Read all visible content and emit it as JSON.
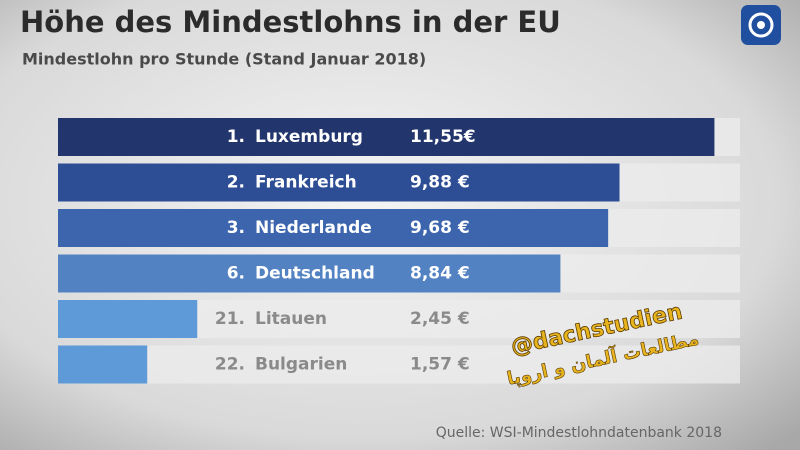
{
  "chart_data": {
    "type": "bar",
    "orientation": "horizontal",
    "title": "Höhe des Mindestlohns in der EU",
    "subtitle": "Mindestlohn pro Stunde (Stand Januar 2018)",
    "ranks": [
      "1.",
      "2.",
      "3.",
      "6.",
      "21.",
      "22."
    ],
    "categories": [
      "Luxemburg",
      "Frankreich",
      "Niederlande",
      "Deutschland",
      "Litauen",
      "Bulgarien"
    ],
    "values": [
      11.55,
      9.88,
      9.68,
      8.84,
      2.45,
      1.57
    ],
    "value_labels": [
      "11,55€",
      "9,88 €",
      "9,68 €",
      "8,84 €",
      "2,45 €",
      "1,57 €"
    ],
    "colors": [
      "#22356c",
      "#2d4d94",
      "#3c65ae",
      "#5382c3",
      "#5d9ad7",
      "#5d9ad7"
    ],
    "xlim": [
      0,
      12
    ],
    "source": "Quelle: WSI-Mindestlohndatenbank 2018",
    "watermark": [
      "@dachstudien",
      "مطالعات آلمان و اروپا"
    ]
  }
}
